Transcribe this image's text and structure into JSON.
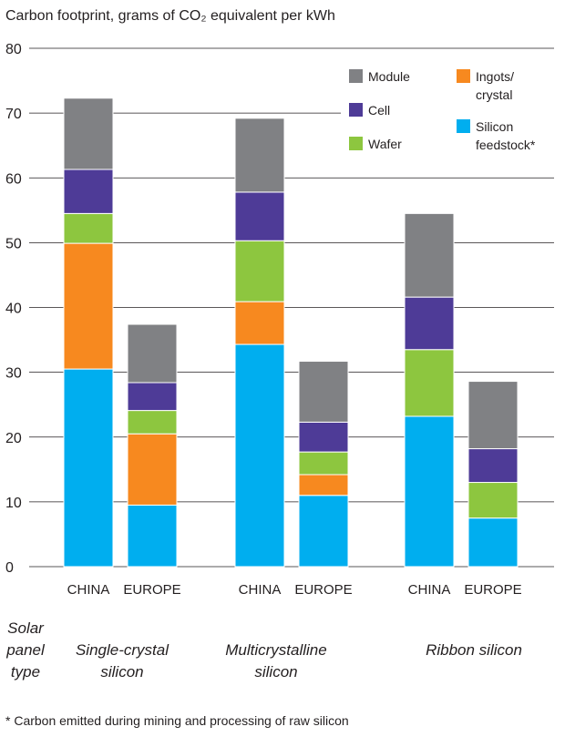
{
  "chart_data": {
    "type": "bar",
    "stacked": true,
    "title": "Carbon footprint, grams of CO₂ equivalent per kWh",
    "ylim": [
      0,
      80
    ],
    "yticks": [
      0,
      10,
      20,
      30,
      40,
      50,
      60,
      70,
      80
    ],
    "grid": true,
    "legend_position": "top-right",
    "type_label": [
      "Solar",
      "panel",
      "type"
    ],
    "groups": [
      {
        "label": [
          "Single-crystal",
          "silicon"
        ],
        "categories": [
          "CHINA",
          "EUROPE"
        ]
      },
      {
        "label": [
          "Multicrystalline",
          "silicon"
        ],
        "categories": [
          "CHINA",
          "EUROPE"
        ]
      },
      {
        "label": [
          "Ribbon silicon"
        ],
        "categories": [
          "CHINA",
          "EUROPE"
        ]
      }
    ],
    "categories": [
      "CHINA",
      "EUROPE",
      "CHINA",
      "EUROPE",
      "CHINA",
      "EUROPE"
    ],
    "series": [
      {
        "name": "Silicon feedstock*",
        "legend_lines": [
          "Silicon",
          "feedstock*"
        ],
        "color": "#00aeef",
        "values": [
          30.5,
          9.5,
          34.3,
          11.0,
          23.2,
          7.5
        ]
      },
      {
        "name": "Ingots/ crystal",
        "legend_lines": [
          "Ingots/",
          "crystal"
        ],
        "color": "#f7891f",
        "values": [
          19.4,
          11.0,
          6.6,
          3.2,
          0,
          0
        ]
      },
      {
        "name": "Wafer",
        "legend_lines": [
          "Wafer"
        ],
        "color": "#8dc63f",
        "values": [
          4.6,
          3.6,
          9.4,
          3.5,
          10.3,
          5.5
        ]
      },
      {
        "name": "Cell",
        "legend_lines": [
          "Cell"
        ],
        "color": "#4e3b97",
        "values": [
          6.8,
          4.3,
          7.5,
          4.6,
          8.1,
          5.2
        ]
      },
      {
        "name": "Module",
        "legend_lines": [
          "Module"
        ],
        "color": "#808184",
        "values": [
          11.0,
          9.0,
          11.4,
          9.4,
          12.9,
          10.4
        ]
      }
    ],
    "footnote": "* Carbon emitted during mining and processing of raw silicon"
  }
}
